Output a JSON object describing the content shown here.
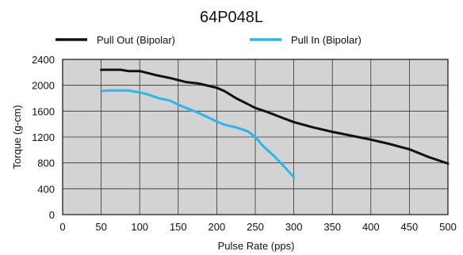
{
  "chart_data": {
    "type": "line",
    "title": "64P048L",
    "xlabel": "Pulse Rate (pps)",
    "ylabel": "Torque (g-cm)",
    "xlim": [
      0,
      500
    ],
    "ylim": [
      0,
      2400
    ],
    "x_ticks": [
      0,
      50,
      100,
      150,
      200,
      250,
      300,
      350,
      400,
      450,
      500
    ],
    "y_ticks": [
      0,
      400,
      800,
      1200,
      1600,
      2000,
      2400
    ],
    "grid": true,
    "legend_position": "top",
    "plot_background": "#d3d3d3",
    "series": [
      {
        "name": "Pull Out (Bipolar)",
        "color": "#111111",
        "x": [
          50,
          60,
          75,
          85,
          100,
          120,
          140,
          160,
          175,
          190,
          200,
          210,
          225,
          240,
          250,
          265,
          280,
          300,
          325,
          350,
          375,
          400,
          425,
          450,
          475,
          500
        ],
        "y": [
          2240,
          2240,
          2240,
          2220,
          2220,
          2160,
          2110,
          2050,
          2030,
          1990,
          1960,
          1910,
          1800,
          1710,
          1650,
          1590,
          1520,
          1430,
          1350,
          1280,
          1220,
          1160,
          1090,
          1010,
          890,
          790
        ]
      },
      {
        "name": "Pull In (Bipolar)",
        "color": "#29b6e8",
        "x": [
          50,
          60,
          75,
          85,
          100,
          110,
          125,
          140,
          150,
          175,
          200,
          210,
          225,
          240,
          250,
          260,
          275,
          290,
          300
        ],
        "y": [
          1910,
          1920,
          1920,
          1920,
          1890,
          1860,
          1800,
          1760,
          1700,
          1580,
          1440,
          1390,
          1350,
          1290,
          1200,
          1060,
          900,
          710,
          580
        ]
      }
    ]
  }
}
